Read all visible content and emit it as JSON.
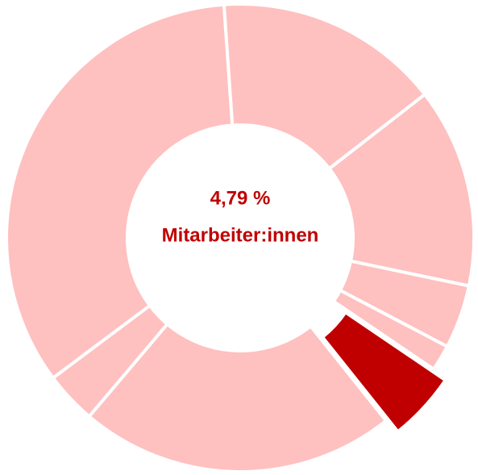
{
  "chart_data": {
    "type": "donut",
    "values": [
      15.6,
      13.8,
      4.4,
      1.8,
      4.79,
      21.9,
      3.6,
      34.11
    ],
    "value_labels": [
      null,
      null,
      null,
      null,
      "4,79 %",
      null,
      null,
      null
    ],
    "colors": [
      "#ffc0c0",
      "#ffc0c0",
      "#ffc0c0",
      "#ffc0c0",
      "#c00000",
      "#ffc0c0",
      "#ffc0c0",
      "#ffc0c0"
    ],
    "center_label": "Mitarbeiter:innen",
    "explode": 4
  }
}
